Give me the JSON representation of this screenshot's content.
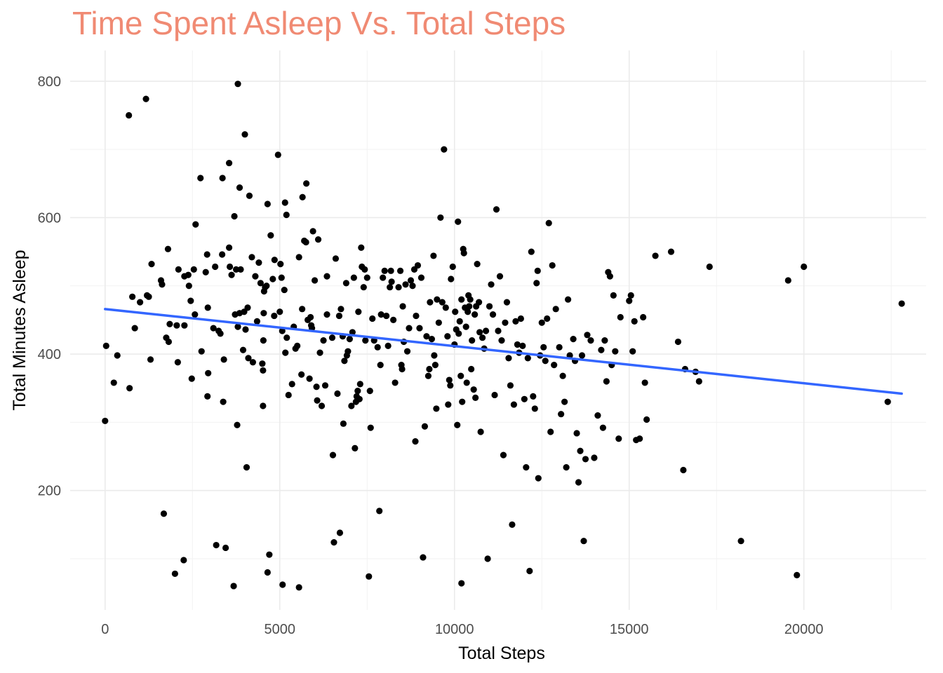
{
  "chart_data": {
    "type": "scatter",
    "title": "Time Spent Asleep Vs. Total Steps",
    "xlabel": "Total Steps",
    "ylabel": "Total Minutes Asleep",
    "xlim": [
      -1000,
      23500
    ],
    "ylim": [
      25,
      845
    ],
    "x_ticks": [
      0,
      5000,
      10000,
      15000,
      20000
    ],
    "x_tick_labels": [
      "0",
      "5000",
      "10000",
      "15000",
      "20000"
    ],
    "y_ticks": [
      200,
      400,
      600,
      800
    ],
    "y_tick_labels": [
      "200",
      "400",
      "600",
      "800"
    ],
    "x_minor_ticks": [
      2500,
      7500,
      12500,
      17500,
      22500
    ],
    "y_minor_ticks": [
      100,
      300,
      500,
      700
    ],
    "grid": true,
    "legend": "none",
    "point_color": "#000000",
    "trend_color": "#3366FF",
    "title_color": "#F08A73",
    "trendline": {
      "type": "linear",
      "x": [
        0,
        22800
      ],
      "y": [
        466,
        342
      ]
    },
    "points": [
      [
        0,
        302
      ],
      [
        30,
        412
      ],
      [
        250,
        358
      ],
      [
        350,
        398
      ],
      [
        680,
        750
      ],
      [
        700,
        350
      ],
      [
        780,
        484
      ],
      [
        850,
        438
      ],
      [
        1000,
        476
      ],
      [
        1170,
        774
      ],
      [
        1200,
        486
      ],
      [
        1250,
        484
      ],
      [
        1300,
        392
      ],
      [
        1330,
        532
      ],
      [
        1600,
        508
      ],
      [
        1630,
        502
      ],
      [
        1680,
        166
      ],
      [
        1750,
        424
      ],
      [
        1800,
        554
      ],
      [
        1820,
        418
      ],
      [
        1850,
        444
      ],
      [
        2000,
        78
      ],
      [
        2050,
        442
      ],
      [
        2080,
        388
      ],
      [
        2100,
        524
      ],
      [
        2250,
        98
      ],
      [
        2270,
        442
      ],
      [
        2270,
        514
      ],
      [
        2380,
        516
      ],
      [
        2400,
        500
      ],
      [
        2450,
        478
      ],
      [
        2480,
        364
      ],
      [
        2540,
        524
      ],
      [
        2570,
        458
      ],
      [
        2590,
        590
      ],
      [
        2730,
        658
      ],
      [
        2760,
        404
      ],
      [
        2880,
        520
      ],
      [
        2920,
        546
      ],
      [
        2930,
        338
      ],
      [
        2940,
        468
      ],
      [
        2950,
        372
      ],
      [
        3100,
        438
      ],
      [
        3150,
        528
      ],
      [
        3180,
        120
      ],
      [
        3250,
        434
      ],
      [
        3300,
        430
      ],
      [
        3350,
        546
      ],
      [
        3360,
        658
      ],
      [
        3380,
        330
      ],
      [
        3400,
        392
      ],
      [
        3450,
        116
      ],
      [
        3550,
        556
      ],
      [
        3550,
        680
      ],
      [
        3570,
        528
      ],
      [
        3620,
        516
      ],
      [
        3680,
        60
      ],
      [
        3700,
        602
      ],
      [
        3720,
        458
      ],
      [
        3750,
        524
      ],
      [
        3780,
        296
      ],
      [
        3800,
        796
      ],
      [
        3800,
        440
      ],
      [
        3850,
        644
      ],
      [
        3850,
        460
      ],
      [
        3880,
        524
      ],
      [
        3950,
        406
      ],
      [
        3980,
        462
      ],
      [
        4000,
        722
      ],
      [
        4020,
        436
      ],
      [
        4050,
        234
      ],
      [
        4080,
        468
      ],
      [
        4100,
        394
      ],
      [
        4130,
        632
      ],
      [
        4200,
        542
      ],
      [
        4230,
        388
      ],
      [
        4300,
        514
      ],
      [
        4350,
        448
      ],
      [
        4400,
        534
      ],
      [
        4450,
        504
      ],
      [
        4500,
        386
      ],
      [
        4520,
        324
      ],
      [
        4520,
        376
      ],
      [
        4530,
        420
      ],
      [
        4540,
        460
      ],
      [
        4550,
        492
      ],
      [
        4580,
        498
      ],
      [
        4620,
        500
      ],
      [
        4650,
        80
      ],
      [
        4650,
        620
      ],
      [
        4700,
        106
      ],
      [
        4740,
        574
      ],
      [
        4800,
        510
      ],
      [
        4840,
        456
      ],
      [
        4850,
        538
      ],
      [
        4950,
        692
      ],
      [
        5000,
        462
      ],
      [
        5020,
        532
      ],
      [
        5050,
        512
      ],
      [
        5070,
        434
      ],
      [
        5080,
        62
      ],
      [
        5130,
        494
      ],
      [
        5150,
        622
      ],
      [
        5160,
        402
      ],
      [
        5190,
        604
      ],
      [
        5200,
        424
      ],
      [
        5250,
        340
      ],
      [
        5350,
        356
      ],
      [
        5400,
        440
      ],
      [
        5450,
        408
      ],
      [
        5500,
        412
      ],
      [
        5550,
        542
      ],
      [
        5550,
        58
      ],
      [
        5620,
        370
      ],
      [
        5640,
        466
      ],
      [
        5650,
        630
      ],
      [
        5700,
        566
      ],
      [
        5750,
        564
      ],
      [
        5760,
        650
      ],
      [
        5800,
        450
      ],
      [
        5850,
        364
      ],
      [
        5880,
        454
      ],
      [
        5900,
        442
      ],
      [
        5920,
        438
      ],
      [
        5950,
        580
      ],
      [
        6000,
        508
      ],
      [
        6050,
        352
      ],
      [
        6070,
        332
      ],
      [
        6100,
        568
      ],
      [
        6150,
        402
      ],
      [
        6200,
        324
      ],
      [
        6250,
        420
      ],
      [
        6300,
        354
      ],
      [
        6350,
        458
      ],
      [
        6350,
        514
      ],
      [
        6500,
        424
      ],
      [
        6520,
        252
      ],
      [
        6550,
        124
      ],
      [
        6600,
        540
      ],
      [
        6650,
        342
      ],
      [
        6700,
        456
      ],
      [
        6720,
        138
      ],
      [
        6750,
        466
      ],
      [
        6800,
        426
      ],
      [
        6820,
        298
      ],
      [
        6850,
        390
      ],
      [
        6900,
        504
      ],
      [
        6920,
        398
      ],
      [
        6950,
        404
      ],
      [
        7000,
        422
      ],
      [
        7050,
        324
      ],
      [
        7080,
        432
      ],
      [
        7120,
        512
      ],
      [
        7150,
        262
      ],
      [
        7180,
        330
      ],
      [
        7200,
        338
      ],
      [
        7230,
        346
      ],
      [
        7250,
        462
      ],
      [
        7280,
        334
      ],
      [
        7300,
        356
      ],
      [
        7330,
        556
      ],
      [
        7350,
        528
      ],
      [
        7400,
        498
      ],
      [
        7430,
        524
      ],
      [
        7450,
        420
      ],
      [
        7500,
        512
      ],
      [
        7550,
        74
      ],
      [
        7580,
        346
      ],
      [
        7600,
        292
      ],
      [
        7650,
        452
      ],
      [
        7700,
        420
      ],
      [
        7800,
        410
      ],
      [
        7850,
        170
      ],
      [
        7880,
        384
      ],
      [
        7900,
        458
      ],
      [
        7950,
        512
      ],
      [
        8000,
        522
      ],
      [
        8050,
        456
      ],
      [
        8100,
        412
      ],
      [
        8150,
        498
      ],
      [
        8180,
        522
      ],
      [
        8200,
        506
      ],
      [
        8250,
        450
      ],
      [
        8300,
        358
      ],
      [
        8400,
        498
      ],
      [
        8450,
        522
      ],
      [
        8480,
        384
      ],
      [
        8500,
        378
      ],
      [
        8520,
        470
      ],
      [
        8550,
        418
      ],
      [
        8600,
        502
      ],
      [
        8650,
        404
      ],
      [
        8700,
        438
      ],
      [
        8750,
        508
      ],
      [
        8800,
        500
      ],
      [
        8850,
        524
      ],
      [
        8880,
        272
      ],
      [
        8900,
        456
      ],
      [
        8950,
        530
      ],
      [
        9000,
        438
      ],
      [
        9050,
        512
      ],
      [
        9100,
        102
      ],
      [
        9150,
        294
      ],
      [
        9200,
        426
      ],
      [
        9250,
        368
      ],
      [
        9280,
        378
      ],
      [
        9300,
        476
      ],
      [
        9350,
        422
      ],
      [
        9400,
        544
      ],
      [
        9420,
        398
      ],
      [
        9450,
        384
      ],
      [
        9480,
        320
      ],
      [
        9500,
        480
      ],
      [
        9550,
        446
      ],
      [
        9600,
        600
      ],
      [
        9650,
        476
      ],
      [
        9700,
        700
      ],
      [
        9750,
        468
      ],
      [
        9800,
        426
      ],
      [
        9820,
        326
      ],
      [
        9850,
        362
      ],
      [
        9880,
        354
      ],
      [
        9900,
        510
      ],
      [
        9950,
        528
      ],
      [
        10000,
        414
      ],
      [
        10020,
        462
      ],
      [
        10050,
        436
      ],
      [
        10080,
        296
      ],
      [
        10100,
        594
      ],
      [
        10120,
        430
      ],
      [
        10150,
        448
      ],
      [
        10180,
        368
      ],
      [
        10200,
        64
      ],
      [
        10200,
        480
      ],
      [
        10220,
        330
      ],
      [
        10250,
        554
      ],
      [
        10270,
        548
      ],
      [
        10300,
        468
      ],
      [
        10330,
        440
      ],
      [
        10350,
        358
      ],
      [
        10380,
        462
      ],
      [
        10400,
        486
      ],
      [
        10420,
        470
      ],
      [
        10450,
        480
      ],
      [
        10480,
        378
      ],
      [
        10500,
        420
      ],
      [
        10550,
        348
      ],
      [
        10580,
        458
      ],
      [
        10600,
        336
      ],
      [
        10620,
        470
      ],
      [
        10650,
        532
      ],
      [
        10700,
        476
      ],
      [
        10720,
        432
      ],
      [
        10750,
        286
      ],
      [
        10800,
        424
      ],
      [
        10850,
        408
      ],
      [
        10900,
        434
      ],
      [
        10950,
        100
      ],
      [
        11000,
        470
      ],
      [
        11050,
        502
      ],
      [
        11100,
        458
      ],
      [
        11150,
        340
      ],
      [
        11200,
        612
      ],
      [
        11250,
        434
      ],
      [
        11300,
        514
      ],
      [
        11350,
        420
      ],
      [
        11400,
        252
      ],
      [
        11450,
        446
      ],
      [
        11500,
        476
      ],
      [
        11550,
        394
      ],
      [
        11600,
        354
      ],
      [
        11650,
        150
      ],
      [
        11700,
        326
      ],
      [
        11750,
        448
      ],
      [
        11800,
        414
      ],
      [
        11850,
        402
      ],
      [
        11900,
        452
      ],
      [
        11950,
        412
      ],
      [
        12000,
        334
      ],
      [
        12050,
        234
      ],
      [
        12100,
        394
      ],
      [
        12150,
        82
      ],
      [
        12200,
        550
      ],
      [
        12250,
        338
      ],
      [
        12300,
        320
      ],
      [
        12350,
        504
      ],
      [
        12380,
        522
      ],
      [
        12400,
        218
      ],
      [
        12450,
        398
      ],
      [
        12500,
        446
      ],
      [
        12550,
        410
      ],
      [
        12600,
        390
      ],
      [
        12650,
        452
      ],
      [
        12700,
        592
      ],
      [
        12750,
        286
      ],
      [
        12800,
        530
      ],
      [
        12850,
        384
      ],
      [
        12900,
        466
      ],
      [
        13000,
        410
      ],
      [
        13050,
        312
      ],
      [
        13100,
        368
      ],
      [
        13150,
        330
      ],
      [
        13200,
        234
      ],
      [
        13250,
        480
      ],
      [
        13300,
        398
      ],
      [
        13400,
        422
      ],
      [
        13450,
        390
      ],
      [
        13500,
        284
      ],
      [
        13550,
        212
      ],
      [
        13600,
        258
      ],
      [
        13650,
        398
      ],
      [
        13700,
        126
      ],
      [
        13750,
        246
      ],
      [
        13800,
        428
      ],
      [
        13900,
        420
      ],
      [
        14000,
        248
      ],
      [
        14100,
        310
      ],
      [
        14200,
        406
      ],
      [
        14250,
        292
      ],
      [
        14300,
        420
      ],
      [
        14350,
        360
      ],
      [
        14400,
        520
      ],
      [
        14450,
        514
      ],
      [
        14500,
        384
      ],
      [
        14550,
        486
      ],
      [
        14600,
        404
      ],
      [
        14700,
        276
      ],
      [
        14750,
        454
      ],
      [
        15000,
        478
      ],
      [
        15050,
        486
      ],
      [
        15100,
        404
      ],
      [
        15150,
        448
      ],
      [
        15200,
        274
      ],
      [
        15300,
        276
      ],
      [
        15400,
        454
      ],
      [
        15450,
        358
      ],
      [
        15500,
        304
      ],
      [
        15750,
        544
      ],
      [
        16200,
        550
      ],
      [
        16400,
        418
      ],
      [
        16550,
        230
      ],
      [
        16600,
        378
      ],
      [
        16900,
        374
      ],
      [
        17000,
        360
      ],
      [
        17300,
        528
      ],
      [
        18200,
        126
      ],
      [
        19550,
        508
      ],
      [
        19800,
        76
      ],
      [
        20000,
        528
      ],
      [
        22400,
        330
      ],
      [
        22800,
        474
      ]
    ]
  }
}
